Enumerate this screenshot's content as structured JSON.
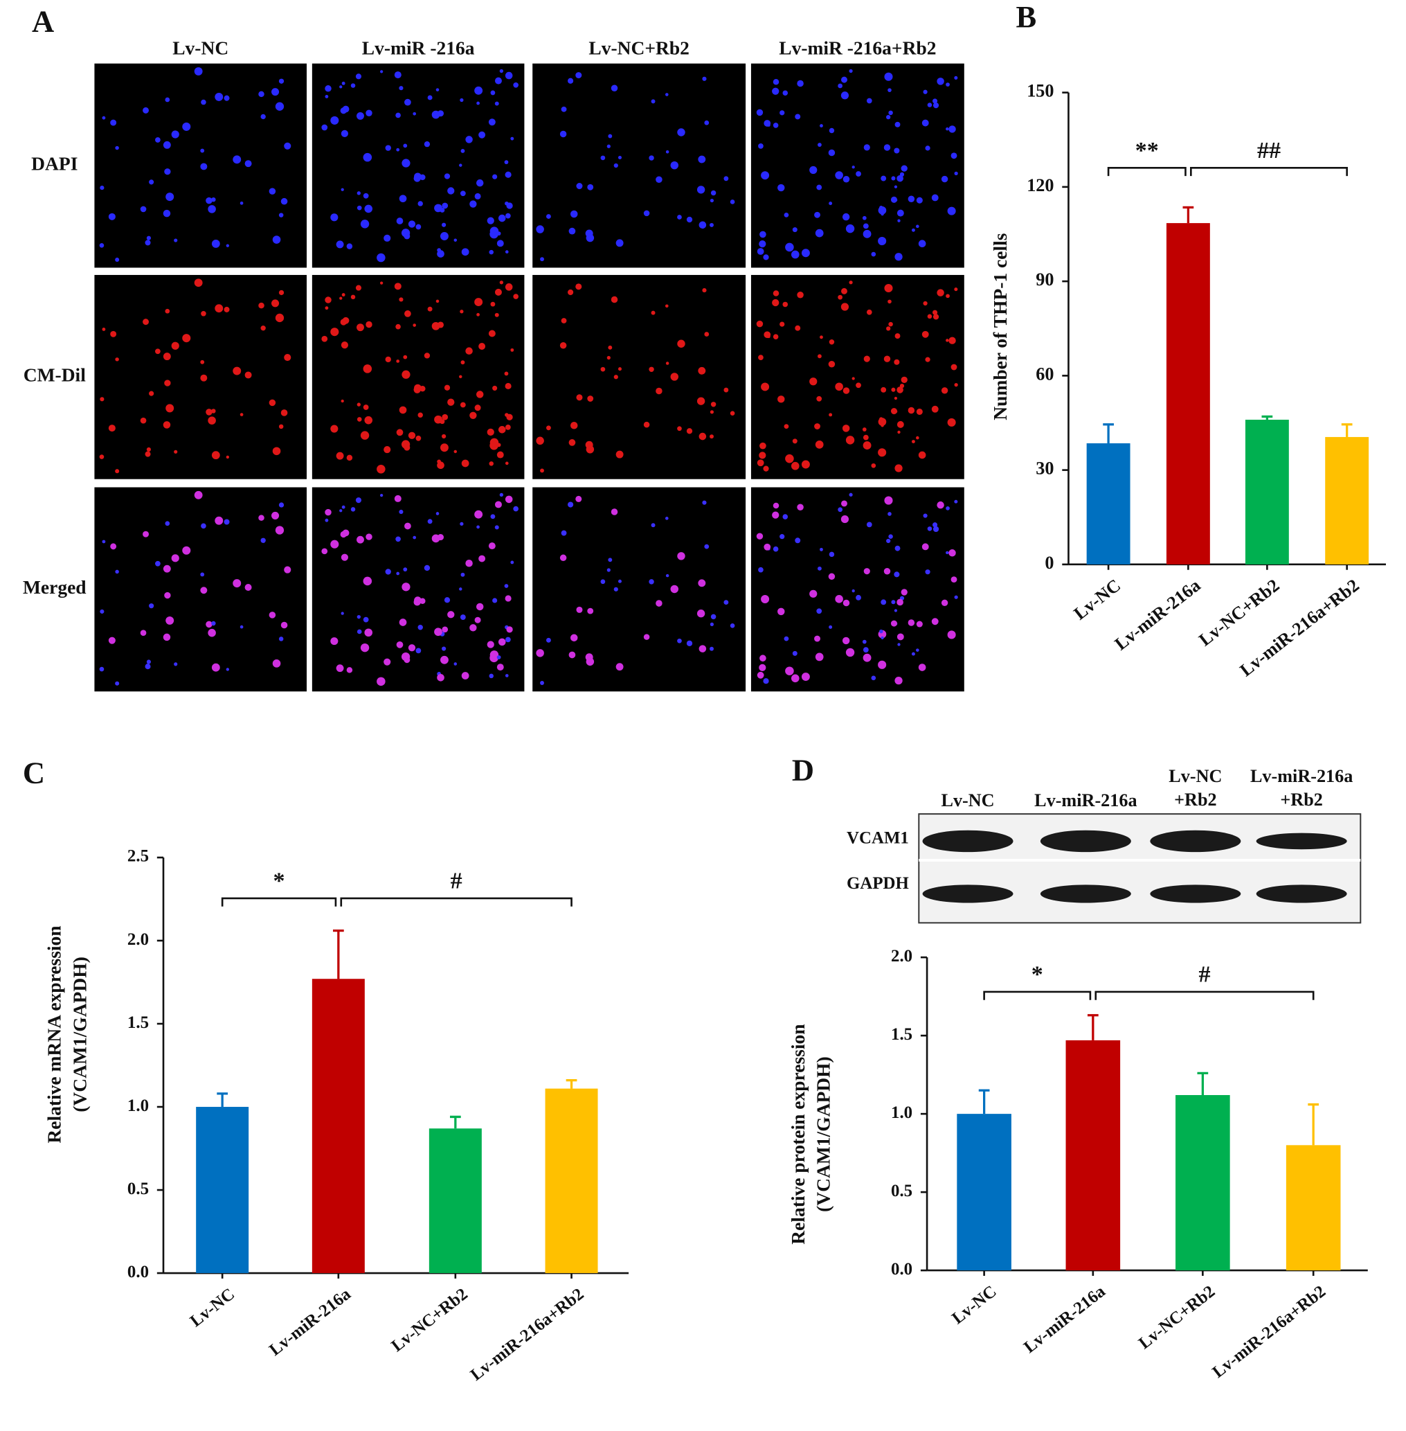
{
  "panel_a": {
    "label": "A",
    "columns": [
      "Lv-NC",
      "Lv-miR -216a",
      "Lv-NC+Rb2",
      "Lv-miR -216a+Rb2"
    ],
    "rows": [
      "DAPI",
      "CM-Dil",
      "Merged"
    ]
  },
  "blot": {
    "lanes": [
      [
        "Lv-NC"
      ],
      [
        "Lv-miR-216a"
      ],
      [
        "Lv-NC",
        "+Rb2"
      ],
      [
        "Lv-miR-216a",
        "+Rb2"
      ]
    ],
    "rows": [
      "VCAM1",
      "GAPDH"
    ]
  },
  "chart_data": [
    {
      "type": "bar",
      "label": "B",
      "ylabel": [
        "Number of THP-1 cells"
      ],
      "categories": [
        "Lv-NC",
        "Lv-miR-216a",
        "Lv-NC+Rb2",
        "Lv-miR-216a+Rb2"
      ],
      "values": [
        38.5,
        108.5,
        46,
        40.5
      ],
      "errors": [
        6,
        5,
        1,
        4
      ],
      "colors": [
        "#0070c0",
        "#c00000",
        "#00b050",
        "#ffc000"
      ],
      "ylim": [
        0,
        150
      ],
      "yticks": [
        0,
        30,
        60,
        90,
        120,
        150
      ],
      "annotations": [
        "**",
        "##"
      ]
    },
    {
      "type": "bar",
      "label": "C",
      "ylabel": [
        "Relative mRNA expression",
        "(VCAM1/GAPDH)"
      ],
      "categories": [
        "Lv-NC",
        "Lv-miR-216a",
        "Lv-NC+Rb2",
        "Lv-miR-216a+Rb2"
      ],
      "values": [
        1.0,
        1.77,
        0.87,
        1.11
      ],
      "errors": [
        0.08,
        0.29,
        0.07,
        0.05
      ],
      "colors": [
        "#0070c0",
        "#c00000",
        "#00b050",
        "#ffc000"
      ],
      "ylim": [
        0,
        2.5
      ],
      "yticks": [
        {
          "value": 0,
          "label": "0.0"
        },
        0.5,
        {
          "value": 1,
          "label": "1.0"
        },
        1.5,
        {
          "value": 2,
          "label": "2.0"
        },
        2.5
      ],
      "annotations": [
        "*",
        "#"
      ]
    },
    {
      "type": "bar",
      "label": "D",
      "ylabel": [
        "Relative protein expression",
        "(VCAM1/GAPDH)"
      ],
      "categories": [
        "Lv-NC",
        "Lv-miR-216a",
        "Lv-NC+Rb2",
        "Lv-miR-216a+Rb2"
      ],
      "values": [
        1.0,
        1.47,
        1.12,
        0.8
      ],
      "errors": [
        0.15,
        0.16,
        0.14,
        0.26
      ],
      "colors": [
        "#0070c0",
        "#c00000",
        "#00b050",
        "#ffc000"
      ],
      "ylim": [
        0,
        2
      ],
      "yticks": [
        {
          "value": 0,
          "label": "0.0"
        },
        0.5,
        {
          "value": 1,
          "label": "1.0"
        },
        1.5,
        {
          "value": 2,
          "label": "2.0"
        }
      ],
      "annotations": [
        "*",
        "#"
      ]
    }
  ]
}
